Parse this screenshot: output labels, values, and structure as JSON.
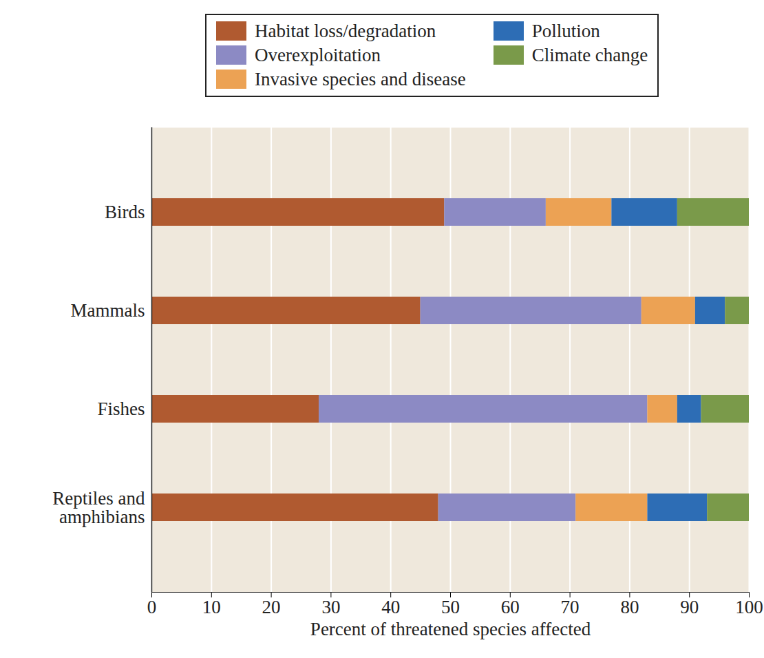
{
  "chart_data": {
    "type": "bar",
    "orientation": "horizontal",
    "stacked": true,
    "grid": true,
    "legend": "top",
    "categories": [
      "Birds",
      "Mammals",
      "Fishes",
      "Reptiles and amphibians"
    ],
    "xlabel": "Percent of threatened species affected",
    "xlim": [
      0,
      100
    ],
    "xticks": [
      0,
      10,
      20,
      30,
      40,
      50,
      60,
      70,
      80,
      90,
      100
    ],
    "series": [
      {
        "name": "Habitat loss/degradation",
        "color": "#b05a30",
        "values": [
          49,
          45,
          28,
          48
        ]
      },
      {
        "name": "Overexploitation",
        "color": "#8c8ac4",
        "values": [
          17,
          37,
          55,
          23
        ]
      },
      {
        "name": "Invasive species and disease",
        "color": "#eca254",
        "values": [
          11,
          9,
          5,
          12
        ]
      },
      {
        "name": "Pollution",
        "color": "#2d6db5",
        "values": [
          11,
          5,
          4,
          10
        ]
      },
      {
        "name": "Climate change",
        "color": "#7a9a4a",
        "values": [
          12,
          4,
          8,
          7
        ]
      }
    ]
  }
}
